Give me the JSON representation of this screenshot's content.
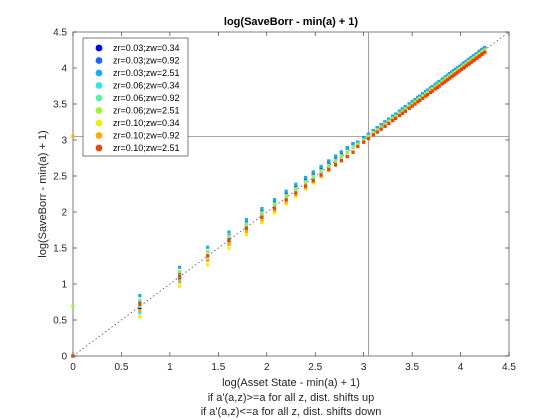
{
  "chart_data": {
    "type": "scatter",
    "title": "log(SaveBorr - min(a) + 1)",
    "xlabel": "log(Asset State - min(a) + 1)",
    "ylabel": "log(SaveBorr - min(a) + 1)",
    "notes": [
      "if a'(a,z)>=a for all z, dist. shifts up",
      "if a'(a,z)<=a for all z, dist. shifts down"
    ],
    "xlim": [
      0,
      4.5
    ],
    "ylim": [
      0,
      4.5
    ],
    "xticks": [
      "0",
      "0.5",
      "1",
      "1.5",
      "2",
      "2.5",
      "3",
      "3.5",
      "4",
      "4.5"
    ],
    "yticks": [
      "0",
      "0.5",
      "1",
      "1.5",
      "2",
      "2.5",
      "3",
      "3.5",
      "4",
      "4.5"
    ],
    "reference_lines": {
      "diagonal": "45-degree dotted",
      "vertical_x": 3.05,
      "horizontal_y": 3.05
    },
    "legend_position": "top-left",
    "x_grid": [
      0,
      0.69,
      1.1,
      1.39,
      1.61,
      1.79,
      1.95,
      2.08,
      2.2,
      2.3,
      2.4,
      2.48,
      2.56,
      2.64,
      2.71,
      2.77,
      2.83,
      2.89,
      2.94,
      3.0,
      3.05,
      3.1,
      3.14,
      3.18,
      3.22,
      3.26,
      3.3,
      3.33,
      3.37,
      3.4,
      3.43,
      3.47,
      3.5,
      3.53,
      3.56,
      3.58,
      3.61,
      3.64,
      3.66,
      3.69,
      3.71,
      3.74,
      3.76,
      3.78,
      3.81,
      3.83,
      3.85,
      3.87,
      3.89,
      3.91,
      3.93,
      3.95,
      3.97,
      3.99,
      4.01,
      4.03,
      4.04,
      4.06,
      4.08,
      4.09,
      4.11,
      4.13,
      4.14,
      4.16,
      4.17,
      4.19,
      4.2,
      4.22,
      4.23,
      4.25
    ],
    "series": [
      {
        "name": "zr=0.03;zw=0.34",
        "color": "#0000e6",
        "offset": 0.06
      },
      {
        "name": "zr=0.03;zw=0.92",
        "color": "#1a66ff",
        "offset": 0.06
      },
      {
        "name": "zr=0.03;zw=2.51",
        "color": "#1aaaf0",
        "offset": 0.06
      },
      {
        "name": "zr=0.06;zw=0.34",
        "color": "#2ee6e6",
        "offset": 0.0
      },
      {
        "name": "zr=0.06;zw=0.92",
        "color": "#5cf0a8",
        "offset": 0.0
      },
      {
        "name": "zr=0.06;zw=2.51",
        "color": "#a0f040",
        "offset": 0.0
      },
      {
        "name": "zr=0.10;zw=0.34",
        "color": "#f0f000",
        "offset": -0.06
      },
      {
        "name": "zr=0.10;zw=0.92",
        "color": "#ffaa00",
        "offset": -0.06
      },
      {
        "name": "zr=0.10;zw=2.51",
        "color": "#f04010",
        "offset": -0.06
      }
    ]
  }
}
